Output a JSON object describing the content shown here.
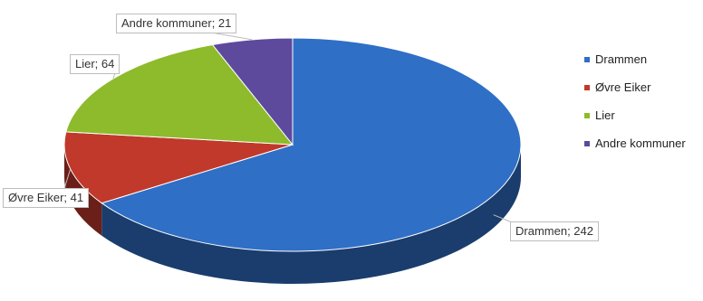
{
  "chart_data": {
    "type": "pie",
    "style": "3d",
    "categories": [
      "Drammen",
      "Øvre Eiker",
      "Lier",
      "Andre kommuner"
    ],
    "values": [
      242,
      41,
      64,
      21
    ],
    "colors": [
      "#2f6fc6",
      "#c0392b",
      "#8dbb2c",
      "#5d4a9c"
    ],
    "data_labels": [
      "Drammen; 242",
      "Øvre Eiker; 41",
      "Lier; 64",
      "Andre kommuner; 21"
    ],
    "legend_position": "right"
  }
}
